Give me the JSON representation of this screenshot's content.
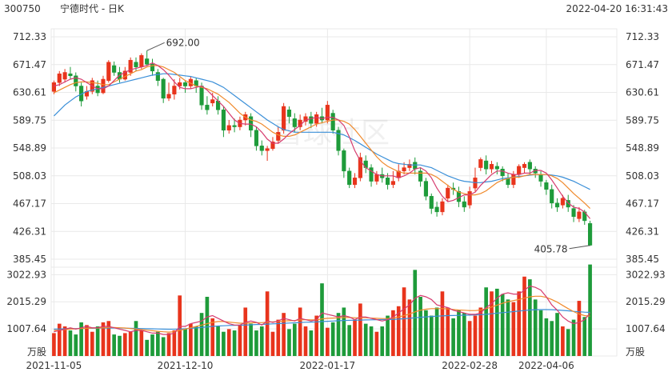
{
  "header": {
    "stock_code": "300750",
    "stock_name": "宁德时代 - 日K",
    "timestamp": "2022-04-20 16:31:43"
  },
  "watermark": {
    "text": "雪球社区"
  },
  "colors": {
    "up": "#e8341c",
    "down": "#1e9b3a",
    "ma_short": "#d63b6f",
    "ma_mid": "#f08a2c",
    "ma_long": "#3a8fd8",
    "grid": "#e9e9e9"
  },
  "chart_data": [
    {
      "type": "candlestick",
      "y_ticks": [
        "712.33",
        "671.47",
        "630.61",
        "589.75",
        "548.89",
        "508.03",
        "467.17",
        "426.31",
        "385.45"
      ],
      "ylim": [
        385.45,
        712.33
      ],
      "x_labels": [
        "2021-11-05",
        "2021-12-10",
        "2022-01-17",
        "2022-02-28",
        "2022-04-06"
      ],
      "annotations": {
        "high": {
          "label": "692.00",
          "value": 692.0
        },
        "low": {
          "label": "405.78",
          "value": 405.78
        }
      },
      "candles": [
        [
          632,
          645,
          628,
          648
        ],
        [
          645,
          658,
          640,
          662
        ],
        [
          650,
          660,
          645,
          665
        ],
        [
          658,
          655,
          650,
          668
        ],
        [
          655,
          640,
          632,
          660
        ],
        [
          640,
          618,
          610,
          645
        ],
        [
          625,
          632,
          620,
          640
        ],
        [
          632,
          648,
          628,
          652
        ],
        [
          640,
          630,
          625,
          648
        ],
        [
          630,
          650,
          628,
          655
        ],
        [
          648,
          675,
          645,
          678
        ],
        [
          670,
          660,
          655,
          676
        ],
        [
          660,
          650,
          645,
          668
        ],
        [
          650,
          662,
          648,
          668
        ],
        [
          660,
          678,
          655,
          682
        ],
        [
          675,
          668,
          662,
          682
        ],
        [
          668,
          685,
          665,
          688
        ],
        [
          680,
          672,
          670,
          692
        ],
        [
          672,
          662,
          655,
          680
        ],
        [
          660,
          648,
          640,
          665
        ],
        [
          650,
          622,
          615,
          652
        ],
        [
          622,
          628,
          618,
          645
        ],
        [
          628,
          640,
          620,
          650
        ],
        [
          640,
          645,
          635,
          652
        ],
        [
          645,
          640,
          630,
          648
        ],
        [
          640,
          650,
          636,
          654
        ],
        [
          648,
          640,
          630,
          652
        ],
        [
          640,
          612,
          605,
          645
        ],
        [
          612,
          605,
          598,
          625
        ],
        [
          615,
          620,
          610,
          630
        ],
        [
          618,
          605,
          598,
          625
        ],
        [
          605,
          575,
          565,
          610
        ],
        [
          575,
          582,
          570,
          590
        ],
        [
          582,
          580,
          572,
          592
        ],
        [
          580,
          590,
          575,
          595
        ],
        [
          590,
          598,
          582,
          602
        ],
        [
          595,
          575,
          565,
          600
        ],
        [
          575,
          552,
          545,
          580
        ],
        [
          552,
          545,
          538,
          560
        ],
        [
          545,
          548,
          530,
          552
        ],
        [
          548,
          558,
          545,
          565
        ],
        [
          560,
          572,
          555,
          580
        ],
        [
          575,
          610,
          570,
          615
        ],
        [
          605,
          595,
          585,
          610
        ],
        [
          592,
          580,
          572,
          600
        ],
        [
          580,
          590,
          575,
          598
        ],
        [
          588,
          595,
          582,
          600
        ],
        [
          595,
          585,
          578,
          602
        ],
        [
          585,
          598,
          580,
          602
        ],
        [
          595,
          590,
          585,
          608
        ],
        [
          590,
          612,
          585,
          618
        ],
        [
          600,
          575,
          570,
          605
        ],
        [
          575,
          545,
          538,
          580
        ],
        [
          545,
          515,
          505,
          548
        ],
        [
          515,
          495,
          490,
          520
        ],
        [
          495,
          505,
          490,
          512
        ],
        [
          505,
          535,
          500,
          542
        ],
        [
          530,
          520,
          512,
          538
        ],
        [
          520,
          500,
          492,
          525
        ],
        [
          500,
          510,
          495,
          515
        ],
        [
          510,
          505,
          498,
          520
        ],
        [
          505,
          495,
          488,
          512
        ],
        [
          495,
          500,
          490,
          515
        ],
        [
          505,
          515,
          500,
          525
        ],
        [
          515,
          520,
          510,
          528
        ],
        [
          520,
          525,
          515,
          532
        ],
        [
          528,
          518,
          510,
          535
        ],
        [
          515,
          500,
          492,
          520
        ],
        [
          500,
          478,
          472,
          505
        ],
        [
          478,
          460,
          452,
          482
        ],
        [
          462,
          455,
          448,
          470
        ],
        [
          455,
          470,
          450,
          475
        ],
        [
          475,
          490,
          470,
          495
        ],
        [
          490,
          488,
          480,
          498
        ],
        [
          485,
          470,
          462,
          492
        ],
        [
          470,
          462,
          455,
          478
        ],
        [
          465,
          485,
          460,
          492
        ],
        [
          490,
          505,
          485,
          520
        ],
        [
          520,
          532,
          515,
          535
        ],
        [
          530,
          518,
          510,
          538
        ],
        [
          518,
          525,
          512,
          530
        ],
        [
          522,
          518,
          510,
          528
        ],
        [
          518,
          508,
          500,
          522
        ],
        [
          505,
          495,
          490,
          512
        ],
        [
          495,
          510,
          490,
          515
        ],
        [
          510,
          522,
          505,
          525
        ],
        [
          520,
          525,
          512,
          528
        ],
        [
          528,
          518,
          510,
          532
        ],
        [
          518,
          512,
          505,
          522
        ],
        [
          510,
          500,
          492,
          515
        ],
        [
          498,
          488,
          480,
          502
        ],
        [
          488,
          468,
          460,
          495
        ],
        [
          468,
          462,
          455,
          475
        ],
        [
          465,
          475,
          460,
          480
        ],
        [
          472,
          462,
          455,
          480
        ],
        [
          460,
          448,
          440,
          465
        ],
        [
          445,
          455,
          440,
          462
        ],
        [
          455,
          442,
          436,
          458
        ],
        [
          438,
          406,
          405,
          442
        ]
      ],
      "ma_short": [
        640,
        642,
        646,
        650,
        652,
        650,
        645,
        640,
        636,
        636,
        640,
        648,
        656,
        660,
        664,
        666,
        668,
        670,
        674,
        670,
        664,
        656,
        646,
        638,
        636,
        636,
        638,
        640,
        634,
        626,
        618,
        610,
        600,
        590,
        585,
        584,
        584,
        580,
        572,
        562,
        556,
        556,
        562,
        570,
        576,
        582,
        590,
        592,
        594,
        592,
        594,
        594,
        590,
        582,
        565,
        545,
        530,
        520,
        515,
        510,
        508,
        508,
        508,
        505,
        508,
        512,
        518,
        520,
        515,
        505,
        490,
        478,
        470,
        472,
        476,
        480,
        480,
        484,
        494,
        502,
        510,
        515,
        515,
        512,
        510,
        510,
        512,
        512,
        516,
        516,
        512,
        502,
        490,
        478,
        468,
        462,
        460,
        455,
        445
      ],
      "ma_mid": [
        630,
        634,
        638,
        642,
        645,
        646,
        646,
        645,
        644,
        642,
        642,
        646,
        650,
        654,
        658,
        662,
        664,
        668,
        670,
        670,
        668,
        664,
        660,
        654,
        648,
        644,
        640,
        638,
        636,
        632,
        628,
        622,
        616,
        608,
        600,
        594,
        590,
        588,
        584,
        578,
        572,
        568,
        566,
        566,
        568,
        572,
        576,
        580,
        584,
        586,
        588,
        590,
        590,
        588,
        584,
        576,
        566,
        556,
        546,
        536,
        528,
        522,
        518,
        514,
        512,
        512,
        512,
        512,
        512,
        510,
        506,
        500,
        494,
        488,
        484,
        482,
        480,
        480,
        482,
        486,
        492,
        498,
        502,
        504,
        506,
        506,
        508,
        510,
        510,
        510,
        510,
        508,
        504,
        498,
        490,
        482,
        475,
        468,
        460
      ],
      "ma_long": [
        596,
        604,
        612,
        618,
        624,
        628,
        632,
        634,
        636,
        638,
        640,
        642,
        644,
        646,
        648,
        650,
        652,
        654,
        656,
        657,
        658,
        658,
        657,
        656,
        655,
        654,
        652,
        650,
        648,
        646,
        642,
        638,
        632,
        626,
        620,
        614,
        608,
        602,
        596,
        590,
        585,
        580,
        576,
        574,
        572,
        572,
        572,
        572,
        572,
        572,
        572,
        572,
        570,
        568,
        564,
        560,
        555,
        550,
        545,
        540,
        536,
        532,
        528,
        526,
        525,
        524,
        524,
        524,
        522,
        520,
        516,
        512,
        508,
        505,
        502,
        500,
        499,
        498,
        498,
        499,
        500,
        502,
        504,
        505,
        506,
        507,
        508,
        509,
        510,
        510,
        510,
        509,
        508,
        506,
        503,
        500,
        496,
        492,
        488
      ],
      "volume": {
        "y_ticks": [
          "3022.93",
          "2015.29",
          "1007.64"
        ],
        "unit_label": "万股",
        "ylim": [
          0,
          3300
        ],
        "values": [
          850,
          1200,
          1100,
          950,
          800,
          1250,
          1150,
          900,
          1100,
          1250,
          1300,
          800,
          750,
          850,
          900,
          1300,
          950,
          600,
          800,
          900,
          700,
          850,
          950,
          2250,
          1000,
          1200,
          1100,
          1600,
          2200,
          1400,
          1100,
          900,
          1000,
          950,
          1150,
          1800,
          1200,
          950,
          1100,
          2400,
          900,
          1350,
          1600,
          1000,
          1200,
          1800,
          1100,
          950,
          1500,
          2700,
          1050,
          1250,
          1600,
          1800,
          1150,
          1350,
          1950,
          1200,
          1100,
          900,
          1100,
          1500,
          1700,
          1850,
          2550,
          2100,
          3200,
          2200,
          1700,
          1500,
          1800,
          2400,
          1800,
          1400,
          1700,
          1600,
          1300,
          1500,
          1800,
          2550,
          2400,
          2500,
          2300,
          2100,
          2000,
          2400,
          2950,
          2850,
          2100,
          1700,
          1400,
          1300,
          1600,
          1100,
          1000,
          1350,
          2050,
          1450,
          3400
        ],
        "ma_a": [
          900,
          950,
          1000,
          1050,
          1000,
          1050,
          1100,
          1050,
          1050,
          1100,
          1100,
          1050,
          1000,
          950,
          900,
          950,
          950,
          900,
          850,
          850,
          800,
          800,
          850,
          1100,
          1100,
          1200,
          1250,
          1300,
          1450,
          1500,
          1400,
          1300,
          1200,
          1150,
          1150,
          1250,
          1300,
          1250,
          1150,
          1300,
          1250,
          1300,
          1400,
          1350,
          1300,
          1400,
          1350,
          1300,
          1350,
          1600,
          1550,
          1500,
          1450,
          1500,
          1450,
          1350,
          1450,
          1450,
          1400,
          1350,
          1300,
          1350,
          1450,
          1600,
          1750,
          1900,
          2150,
          2250,
          2200,
          2100,
          1900,
          1850,
          1800,
          1700,
          1650,
          1600,
          1550,
          1550,
          1600,
          1800,
          1950,
          2150,
          2300,
          2350,
          2300,
          2300,
          2450,
          2600,
          2550,
          2450,
          2200,
          1900,
          1700,
          1450,
          1300,
          1200,
          1250,
          1350,
          1600
        ],
        "ma_b": [
          950,
          960,
          980,
          1000,
          1010,
          1020,
          1030,
          1040,
          1040,
          1050,
          1060,
          1060,
          1050,
          1040,
          1020,
          1000,
          980,
          960,
          940,
          920,
          900,
          890,
          900,
          950,
          1000,
          1050,
          1100,
          1150,
          1200,
          1250,
          1280,
          1280,
          1260,
          1240,
          1220,
          1220,
          1230,
          1240,
          1240,
          1260,
          1270,
          1280,
          1300,
          1310,
          1320,
          1340,
          1350,
          1340,
          1340,
          1380,
          1400,
          1410,
          1420,
          1430,
          1430,
          1420,
          1420,
          1420,
          1410,
          1400,
          1390,
          1390,
          1410,
          1450,
          1500,
          1560,
          1640,
          1700,
          1740,
          1760,
          1760,
          1760,
          1750,
          1730,
          1710,
          1700,
          1690,
          1690,
          1710,
          1760,
          1820,
          1890,
          1960,
          2020,
          2060,
          2100,
          2150,
          2200,
          2220,
          2220,
          2180,
          2100,
          2000,
          1880,
          1760,
          1650,
          1560,
          1500,
          1480
        ],
        "ma_c": [
          1000,
          1005,
          1010,
          1015,
          1020,
          1025,
          1030,
          1030,
          1035,
          1040,
          1040,
          1040,
          1040,
          1035,
          1030,
          1025,
          1020,
          1015,
          1010,
          1005,
          1000,
          995,
          995,
          1005,
          1015,
          1030,
          1045,
          1060,
          1080,
          1100,
          1115,
          1125,
          1135,
          1140,
          1145,
          1150,
          1160,
          1170,
          1175,
          1185,
          1195,
          1205,
          1215,
          1225,
          1235,
          1245,
          1255,
          1260,
          1265,
          1280,
          1290,
          1300,
          1310,
          1320,
          1325,
          1330,
          1335,
          1340,
          1345,
          1350,
          1352,
          1355,
          1360,
          1370,
          1385,
          1400,
          1420,
          1440,
          1455,
          1470,
          1480,
          1490,
          1500,
          1505,
          1510,
          1515,
          1520,
          1525,
          1535,
          1550,
          1570,
          1590,
          1610,
          1630,
          1650,
          1670,
          1690,
          1710,
          1720,
          1725,
          1725,
          1720,
          1710,
          1695,
          1680,
          1660,
          1645,
          1630,
          1620
        ]
      }
    }
  ]
}
